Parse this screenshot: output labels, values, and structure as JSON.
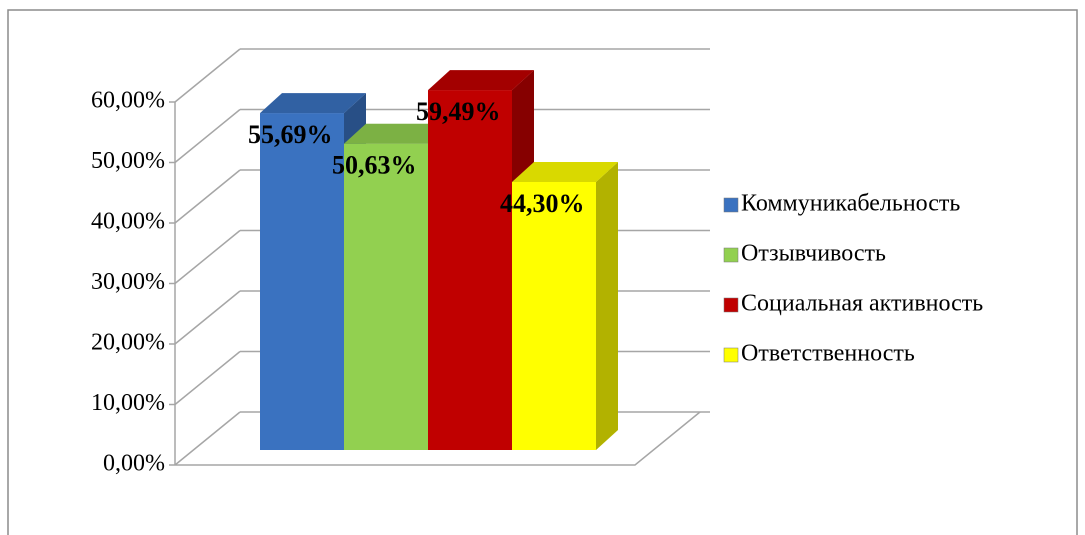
{
  "chart_data": {
    "type": "bar3d",
    "categories": [
      null
    ],
    "series": [
      {
        "name": "Коммуникабельность",
        "color": "#3a72c0",
        "values": [
          55.69
        ],
        "value_labels": [
          "55,69%"
        ]
      },
      {
        "name": "Отзывчивость",
        "color": "#92d050",
        "values": [
          50.63
        ],
        "value_labels": [
          "50,63%"
        ]
      },
      {
        "name": "Социальная активность",
        "color": "#c00000",
        "values": [
          59.49
        ],
        "value_labels": [
          "59,49%"
        ]
      },
      {
        "name": "Ответственность",
        "color": "#ffff00",
        "values": [
          44.3
        ],
        "value_labels": [
          "44,30%"
        ]
      }
    ],
    "ylim": [
      0,
      60
    ],
    "yticks": [
      {
        "value": 0,
        "label": "0,00%"
      },
      {
        "value": 10,
        "label": "10,00%"
      },
      {
        "value": 20,
        "label": "20,00%"
      },
      {
        "value": 30,
        "label": "30,00%"
      },
      {
        "value": 40,
        "label": "40,00%"
      },
      {
        "value": 50,
        "label": "50,00%"
      },
      {
        "value": 60,
        "label": "60,00%"
      }
    ],
    "grid": true,
    "legend": "right"
  }
}
